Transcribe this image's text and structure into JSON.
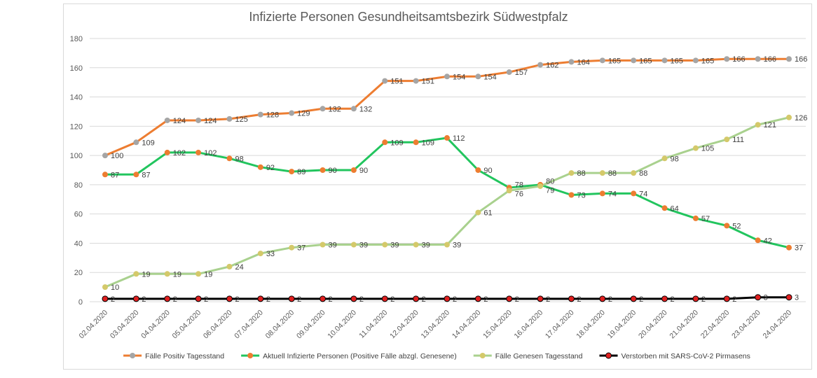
{
  "chart_data": {
    "type": "line",
    "title": "Infizierte Personen Gesundheitsamtsbezirk Südwestpfalz",
    "xlabel": "",
    "ylabel": "",
    "ylim": [
      0,
      180
    ],
    "yticks": [
      0,
      20,
      40,
      60,
      80,
      100,
      120,
      140,
      160,
      180
    ],
    "grid": true,
    "legend": "bottom",
    "x": [
      "02.04.2020",
      "03.04.2020",
      "04.04.2020",
      "05.04.2020",
      "06.04.2020",
      "07.04.2020",
      "08.04.2020",
      "09.04.2020",
      "10.04.2020",
      "11.04.2020",
      "12.04.2020",
      "13.04.2020",
      "14.04.2020",
      "15.04.2020",
      "16.04.2020",
      "17.04.2020",
      "18.04.2020",
      "19.04.2020",
      "20.04.2020",
      "21.04.2020",
      "22.04.2020",
      "23.04.2020",
      "24.04.2020"
    ],
    "series": [
      {
        "name": "Fälle Positiv Tagesstand",
        "color": "#ed7d31",
        "marker": "#a5a5a5",
        "values": [
          100,
          109,
          124,
          124,
          125,
          128,
          129,
          132,
          132,
          151,
          151,
          154,
          154,
          157,
          162,
          164,
          165,
          165,
          165,
          165,
          166,
          166,
          166
        ]
      },
      {
        "name": "Aktuell Infizierte Personen (Positive Fälle abzgl. Genesene)",
        "color": "#22c55e",
        "marker": "#ed7d31",
        "values": [
          87,
          87,
          102,
          102,
          98,
          92,
          89,
          90,
          90,
          109,
          109,
          112,
          90,
          78,
          80,
          73,
          74,
          74,
          64,
          57,
          52,
          42,
          37
        ]
      },
      {
        "name": "Fälle Genesen Tagesstand",
        "color": "#a9d18e",
        "marker": "#d4c96a",
        "values": [
          10,
          19,
          19,
          19,
          24,
          33,
          37,
          39,
          39,
          39,
          39,
          39,
          61,
          76,
          79,
          88,
          88,
          88,
          98,
          105,
          111,
          121,
          126
        ]
      },
      {
        "name": "Verstorben mit SARS-CoV-2 Pirmasens",
        "color": "#000000",
        "marker": "#e02020",
        "values": [
          2,
          2,
          2,
          2,
          2,
          2,
          2,
          2,
          2,
          2,
          2,
          2,
          2,
          2,
          2,
          2,
          2,
          2,
          2,
          2,
          2,
          3,
          3
        ]
      }
    ]
  }
}
